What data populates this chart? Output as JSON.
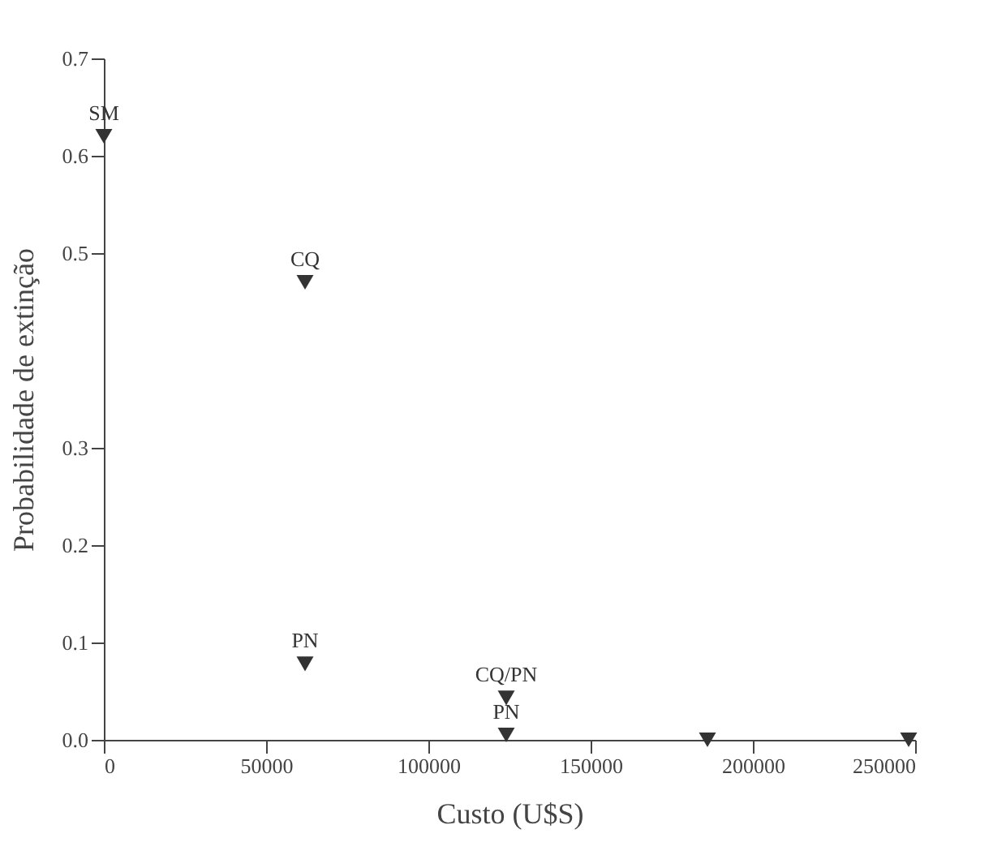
{
  "chart_data": {
    "type": "scatter",
    "xlabel": "Custo (U$S)",
    "ylabel": "Probabilidade de extinção",
    "x": [
      0,
      62000,
      62000,
      124000,
      124000,
      186000,
      248000
    ],
    "values": [
      0.62,
      0.47,
      0.078,
      0.043,
      0.005,
      0,
      0
    ],
    "color": "#333333",
    "marker": "triangle",
    "xlim": [
      0,
      250000
    ],
    "xticks": [
      0,
      50000,
      100000,
      150000,
      200000,
      250000
    ],
    "ylim": [
      0,
      0.7
    ],
    "yticks": [
      {
        "value": 0,
        "label": "0.0"
      },
      0.1,
      0.2,
      0.3,
      0.5,
      0.6,
      0.7
    ],
    "grid": false,
    "annotations": [
      {
        "text": "SM",
        "x": 0,
        "y": 0.62
      },
      {
        "text": "CQ",
        "x": 62000,
        "y": 0.47
      },
      {
        "text": "PN",
        "x": 62000,
        "y": 0.078
      },
      {
        "text": "CQ/PN",
        "x": 124000,
        "y": 0.043
      },
      {
        "text": "PN",
        "x": 124000,
        "y": 0.005
      }
    ]
  }
}
